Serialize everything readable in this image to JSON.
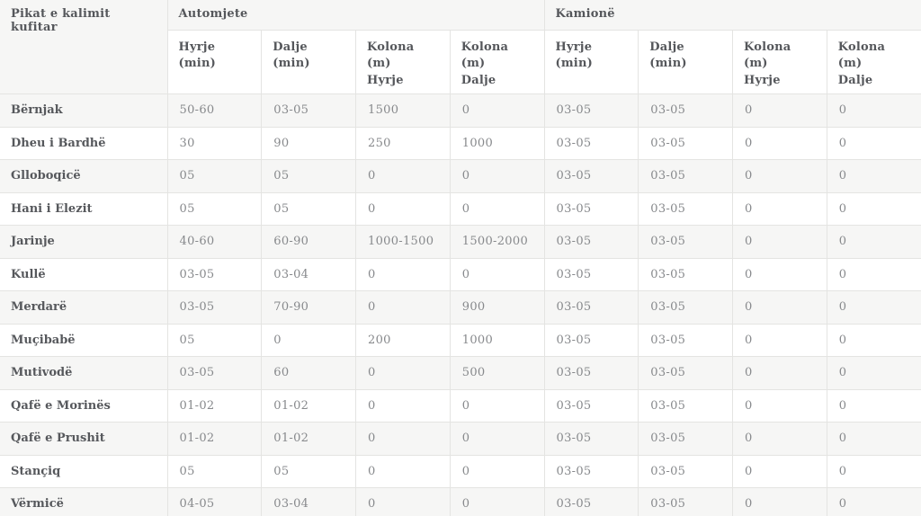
{
  "colors": {
    "stripe_background": "#f6f6f5",
    "border": "#e4e4e2",
    "header_text": "#55575b",
    "row_name_text": "#56585c",
    "value_text": "#87898c"
  },
  "table": {
    "row_header_label": "Pikat e kalimit kufitar",
    "groups": [
      {
        "label": "Automjete",
        "columns": [
          "Hyrje (min)",
          "Dalje (min)",
          "Kolona (m)\nHyrje",
          "Kolona (m)\nDalje"
        ]
      },
      {
        "label": "Kamionë",
        "columns": [
          "Hyrje (min)",
          "Dalje (min)",
          "Kolona (m)\nHyrje",
          "Kolona (m)\nDalje"
        ]
      }
    ],
    "rows": [
      {
        "name": "Bërnjak",
        "values": [
          "50-60",
          "03-05",
          "1500",
          "0",
          "03-05",
          "03-05",
          "0",
          "0"
        ]
      },
      {
        "name": "Dheu i Bardhë",
        "values": [
          "30",
          "90",
          "250",
          "1000",
          "03-05",
          "03-05",
          "0",
          "0"
        ]
      },
      {
        "name": "Glloboqicë",
        "values": [
          "05",
          "05",
          "0",
          "0",
          "03-05",
          "03-05",
          "0",
          "0"
        ]
      },
      {
        "name": "Hani i Elezit",
        "values": [
          "05",
          "05",
          "0",
          "0",
          "03-05",
          "03-05",
          "0",
          "0"
        ]
      },
      {
        "name": "Jarinje",
        "values": [
          "40-60",
          "60-90",
          "1000-1500",
          "1500-2000",
          "03-05",
          "03-05",
          "0",
          "0"
        ]
      },
      {
        "name": "Kullë",
        "values": [
          "03-05",
          "03-04",
          "0",
          "0",
          "03-05",
          "03-05",
          "0",
          "0"
        ]
      },
      {
        "name": "Merdarë",
        "values": [
          "03-05",
          "70-90",
          "0",
          "900",
          "03-05",
          "03-05",
          "0",
          "0"
        ]
      },
      {
        "name": "Muçibabë",
        "values": [
          "05",
          "0",
          "200",
          "1000",
          "03-05",
          "03-05",
          "0",
          "0"
        ]
      },
      {
        "name": "Mutivodë",
        "values": [
          "03-05",
          "60",
          "0",
          "500",
          "03-05",
          "03-05",
          "0",
          "0"
        ]
      },
      {
        "name": "Qafë e Morinës",
        "values": [
          "01-02",
          "01-02",
          "0",
          "0",
          "03-05",
          "03-05",
          "0",
          "0"
        ]
      },
      {
        "name": "Qafë e Prushit",
        "values": [
          "01-02",
          "01-02",
          "0",
          "0",
          "03-05",
          "03-05",
          "0",
          "0"
        ]
      },
      {
        "name": "Stançiq",
        "values": [
          "05",
          "05",
          "0",
          "0",
          "03-05",
          "03-05",
          "0",
          "0"
        ]
      },
      {
        "name": "Vërmicë",
        "values": [
          "04-05",
          "03-04",
          "0",
          "0",
          "03-05",
          "03-05",
          "0",
          "0"
        ]
      }
    ]
  }
}
